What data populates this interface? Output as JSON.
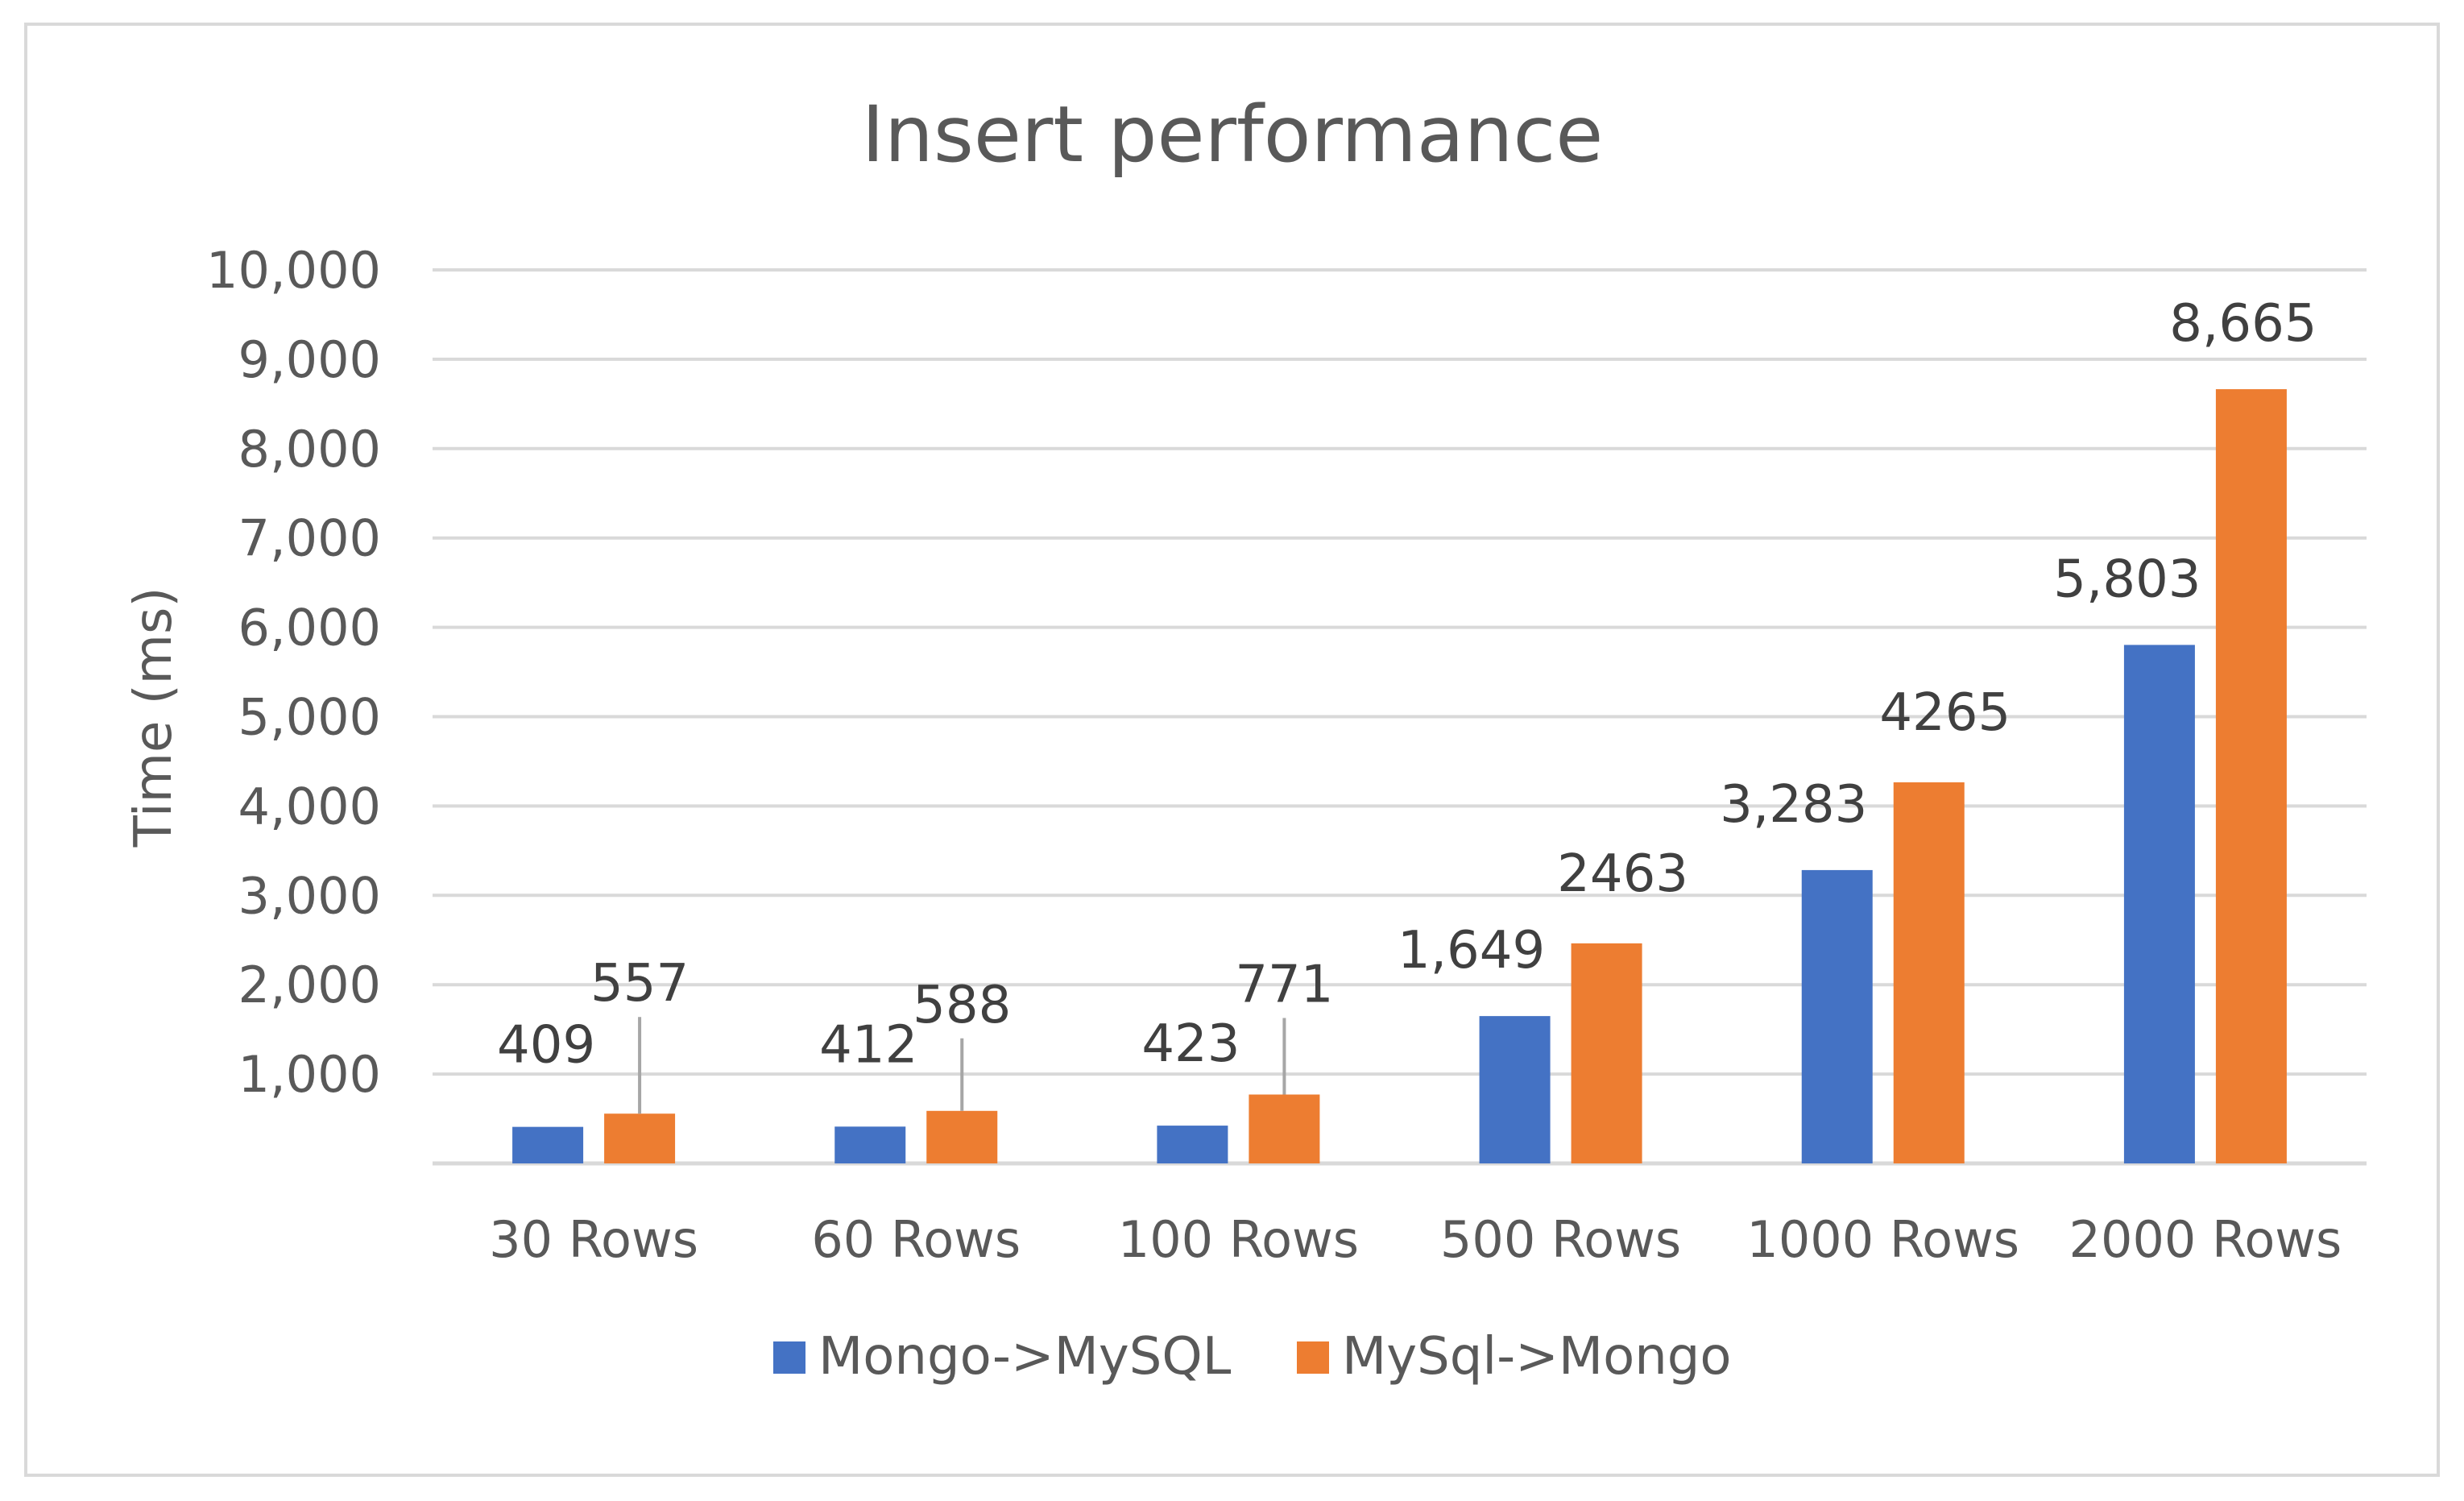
{
  "chart_data": {
    "type": "bar",
    "title": "Insert performance",
    "xlabel": "",
    "ylabel": "Time (ms)",
    "ylim": [
      0,
      10000
    ],
    "yticks": [
      "1,000",
      "2,000",
      "3,000",
      "4,000",
      "5,000",
      "6,000",
      "7,000",
      "8,000",
      "9,000",
      "10,000"
    ],
    "ytick_values": [
      1000,
      2000,
      3000,
      4000,
      5000,
      6000,
      7000,
      8000,
      9000,
      10000
    ],
    "categories": [
      "30 Rows",
      "60 Rows",
      "100 Rows",
      "500 Rows",
      "1000 Rows",
      "2000 Rows"
    ],
    "series": [
      {
        "name": "Mongo->MySQL",
        "color": "#4472c4",
        "values": [
          409,
          412,
          423,
          1649,
          3283,
          5803
        ],
        "labels": [
          "409",
          "412",
          "423",
          "1,649",
          "3,283",
          "5,803"
        ]
      },
      {
        "name": "MySql->Mongo",
        "color": "#ed7d31",
        "values": [
          557,
          588,
          771,
          2463,
          4265,
          8665
        ],
        "labels": [
          "557",
          "588",
          "771",
          "2463",
          "4265",
          "8,665"
        ]
      }
    ],
    "grid": true,
    "legend": "bottom"
  }
}
